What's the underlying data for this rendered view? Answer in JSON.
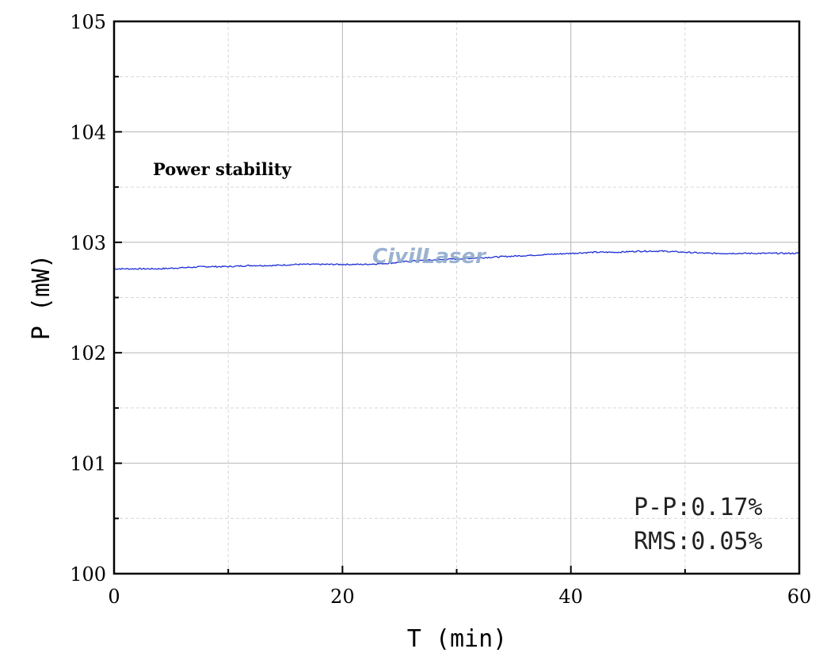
{
  "chart_data": {
    "type": "line",
    "title": "Power stability",
    "xlabel": "T (min)",
    "ylabel": "P (mW)",
    "xlim": [
      0,
      60
    ],
    "ylim": [
      100,
      105
    ],
    "xticks": [
      0,
      20,
      40,
      60
    ],
    "yticks": [
      100,
      101,
      102,
      103,
      104,
      105
    ],
    "grid": true,
    "series": [
      {
        "color": "#1f2fd6",
        "x": [
          0,
          2,
          4,
          6,
          8,
          10,
          12,
          14,
          16,
          18,
          20,
          22,
          24,
          26,
          28,
          30,
          32,
          34,
          36,
          38,
          40,
          42,
          44,
          46,
          48,
          50,
          52,
          54,
          56,
          58,
          60
        ],
        "y": [
          102.76,
          102.76,
          102.76,
          102.77,
          102.78,
          102.78,
          102.79,
          102.79,
          102.8,
          102.8,
          102.8,
          102.8,
          102.81,
          102.83,
          102.84,
          102.85,
          102.86,
          102.87,
          102.88,
          102.89,
          102.9,
          102.91,
          102.91,
          102.92,
          102.92,
          102.91,
          102.9,
          102.9,
          102.9,
          102.9,
          102.9
        ]
      }
    ],
    "annotations": [
      "P-P:0.17%",
      "RMS:0.05%"
    ]
  },
  "watermark": "CivilLaser"
}
